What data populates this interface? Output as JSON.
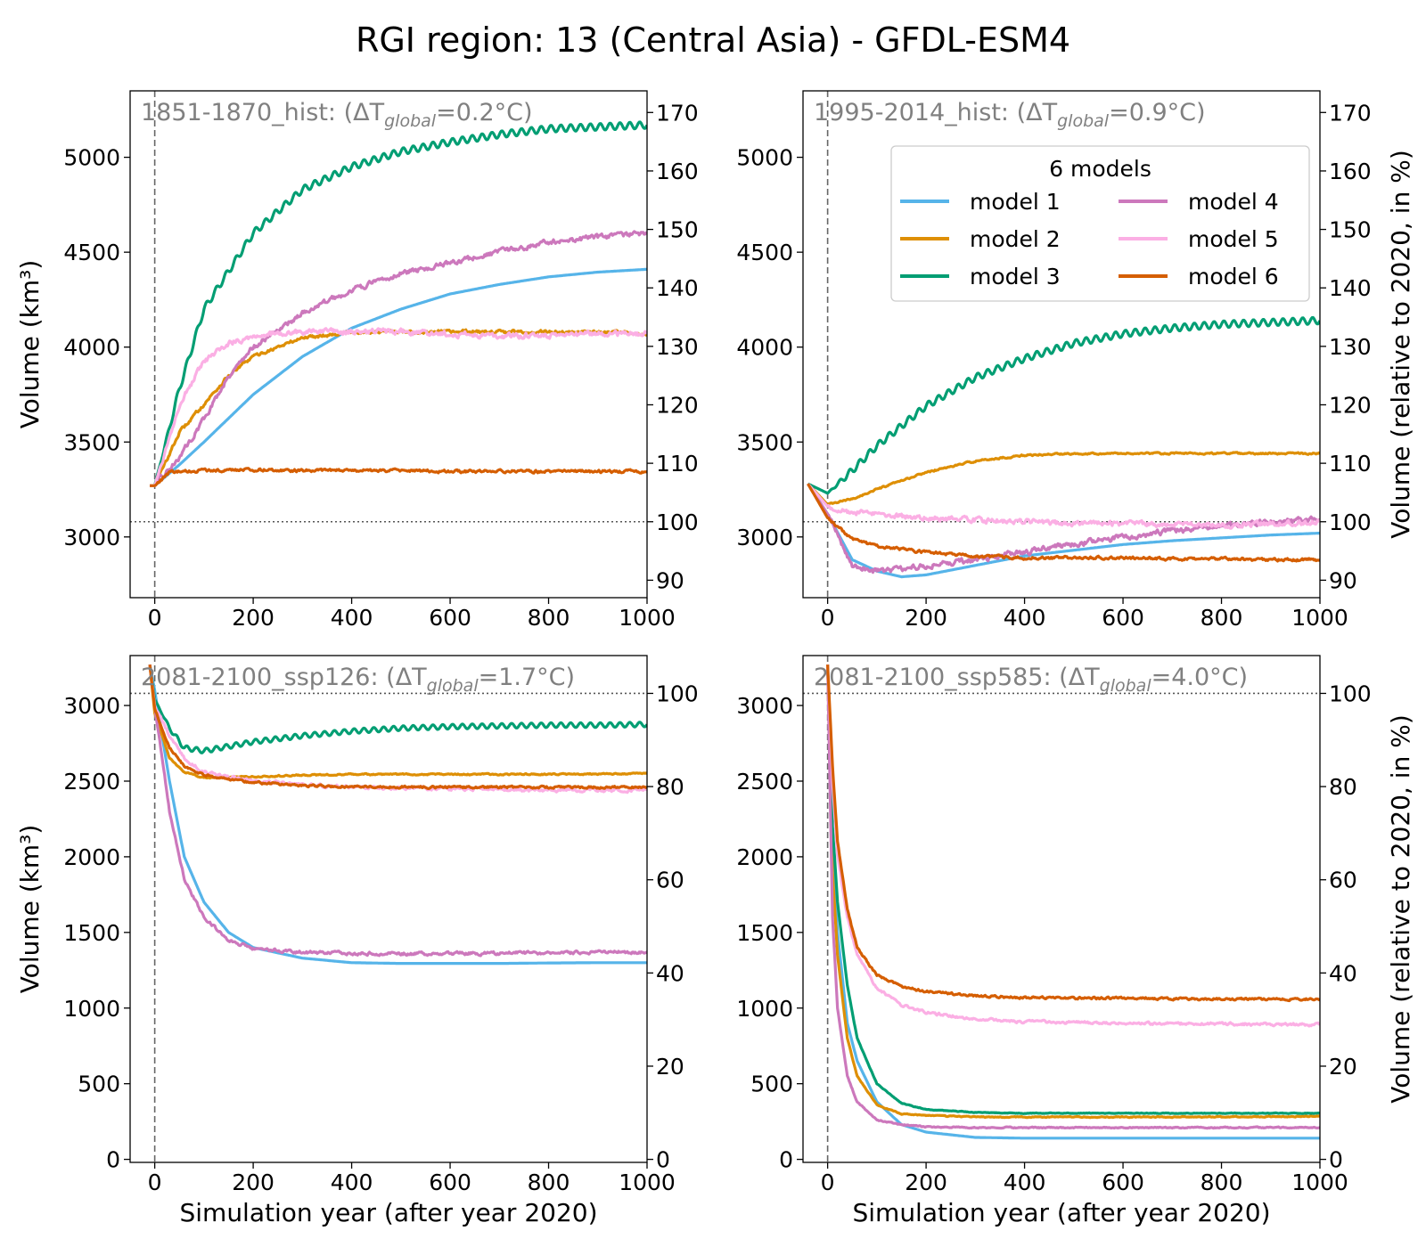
{
  "title": "RGI region: 13 (Central Asia) - GFDL-ESM4",
  "colors": {
    "model 1": "#56b4e9",
    "model 2": "#de8f05",
    "model 3": "#029e73",
    "model 4": "#cc78bc",
    "model 5": "#fbafe4",
    "model 6": "#d55e00",
    "annotation": "#808080",
    "axes": "#000000"
  },
  "chart_data": [
    {
      "type": "line",
      "annotation": "1851-1870_hist: (ΔT<sub>global</sub>=0.2°C)",
      "annotation_parts": {
        "pre": "1851-1870_hist: (ΔT",
        "sub": "global",
        "post": "=0.2°C)"
      },
      "xlabel": "",
      "ylabel": "Volume (km³)",
      "ylabel_right": "",
      "xlim": [
        -50,
        1000
      ],
      "ylim": [
        2680,
        5350
      ],
      "xticks": [
        0,
        200,
        400,
        600,
        800,
        1000
      ],
      "yticks": [
        3000,
        3500,
        4000,
        4500,
        5000
      ],
      "yticks_right": [
        90,
        100,
        110,
        120,
        130,
        140,
        150,
        160,
        170
      ],
      "ref_volume_2020": 3080,
      "vertical_dashed_x": 0,
      "legend": null,
      "series": [
        {
          "name": "model 1",
          "x": [
            -10,
            0,
            50,
            100,
            200,
            300,
            400,
            500,
            600,
            700,
            800,
            900,
            1000
          ],
          "values": [
            3270,
            3270,
            3380,
            3500,
            3750,
            3950,
            4100,
            4200,
            4280,
            4330,
            4370,
            4395,
            4410
          ],
          "noise": 0
        },
        {
          "name": "model 2",
          "x": [
            -10,
            0,
            50,
            100,
            150,
            200,
            300,
            400,
            500,
            600,
            700,
            800,
            900,
            1000
          ],
          "values": [
            3270,
            3270,
            3550,
            3700,
            3850,
            3950,
            4050,
            4080,
            4080,
            4080,
            4080,
            4080,
            4080,
            4070
          ],
          "noise": 12
        },
        {
          "name": "model 3",
          "x": [
            -10,
            0,
            50,
            100,
            200,
            300,
            400,
            500,
            600,
            700,
            800,
            900,
            1000
          ],
          "values": [
            3270,
            3270,
            3780,
            4200,
            4600,
            4830,
            4950,
            5030,
            5080,
            5120,
            5150,
            5160,
            5170
          ],
          "noise": 0,
          "wave": 18
        },
        {
          "name": "model 4",
          "x": [
            -10,
            0,
            50,
            100,
            150,
            200,
            300,
            400,
            500,
            600,
            700,
            800,
            900,
            1000
          ],
          "values": [
            3270,
            3270,
            3420,
            3620,
            3850,
            4000,
            4180,
            4300,
            4390,
            4440,
            4500,
            4550,
            4580,
            4600
          ],
          "noise": 18
        },
        {
          "name": "model 5",
          "x": [
            -10,
            0,
            50,
            100,
            150,
            200,
            300,
            400,
            500,
            600,
            700,
            800,
            900,
            1000
          ],
          "values": [
            3270,
            3270,
            3700,
            3920,
            4020,
            4060,
            4080,
            4080,
            4080,
            4070,
            4060,
            4060,
            4070,
            4070
          ],
          "noise": 20
        },
        {
          "name": "model 6",
          "x": [
            -10,
            0,
            30,
            100,
            200,
            300,
            400,
            500,
            600,
            700,
            800,
            900,
            1000
          ],
          "values": [
            3270,
            3270,
            3340,
            3350,
            3355,
            3350,
            3350,
            3350,
            3345,
            3345,
            3345,
            3345,
            3345
          ],
          "noise": 10
        }
      ]
    },
    {
      "type": "line",
      "annotation": "1995-2014_hist: (ΔT<sub>global</sub>=0.9°C)",
      "annotation_parts": {
        "pre": "1995-2014_hist: (ΔT",
        "sub": "global",
        "post": "=0.9°C)"
      },
      "xlabel": "",
      "ylabel": "",
      "ylabel_right": "Volume (relative to 2020, in %)",
      "xlim": [
        -50,
        1000
      ],
      "ylim": [
        2680,
        5350
      ],
      "xticks": [
        0,
        200,
        400,
        600,
        800,
        1000
      ],
      "yticks": [
        3000,
        3500,
        4000,
        4500,
        5000
      ],
      "yticks_right": [
        90,
        100,
        110,
        120,
        130,
        140,
        150,
        160,
        170
      ],
      "ref_volume_2020": 3080,
      "vertical_dashed_x": 0,
      "legend": {
        "title": "6 models",
        "position": "upper right",
        "columns": 2,
        "entries": [
          "model 1",
          "model 2",
          "model 3",
          "model 4",
          "model 5",
          "model 6"
        ]
      },
      "series": [
        {
          "name": "model 1",
          "x": [
            -40,
            0,
            50,
            100,
            150,
            200,
            300,
            400,
            500,
            600,
            700,
            800,
            900,
            1000
          ],
          "values": [
            3280,
            3120,
            2880,
            2820,
            2790,
            2800,
            2850,
            2900,
            2930,
            2960,
            2980,
            2995,
            3010,
            3020
          ],
          "noise": 0
        },
        {
          "name": "model 2",
          "x": [
            -40,
            0,
            50,
            100,
            200,
            300,
            400,
            500,
            600,
            700,
            800,
            900,
            1000
          ],
          "values": [
            3280,
            3170,
            3200,
            3250,
            3340,
            3400,
            3430,
            3440,
            3440,
            3440,
            3440,
            3440,
            3440
          ],
          "noise": 6
        },
        {
          "name": "model 3",
          "x": [
            -40,
            0,
            50,
            100,
            200,
            300,
            400,
            500,
            600,
            700,
            800,
            900,
            1000
          ],
          "values": [
            3280,
            3230,
            3350,
            3480,
            3690,
            3840,
            3940,
            4020,
            4070,
            4100,
            4120,
            4130,
            4140
          ],
          "noise": 0,
          "wave": 18
        },
        {
          "name": "model 4",
          "x": [
            -40,
            0,
            50,
            100,
            150,
            200,
            300,
            400,
            500,
            600,
            700,
            800,
            900,
            1000
          ],
          "values": [
            3280,
            3120,
            2850,
            2820,
            2830,
            2850,
            2880,
            2920,
            2960,
            3000,
            3030,
            3060,
            3080,
            3090
          ],
          "noise": 20
        },
        {
          "name": "model 5",
          "x": [
            -40,
            0,
            50,
            100,
            200,
            300,
            400,
            500,
            600,
            700,
            800,
            900,
            1000
          ],
          "values": [
            3280,
            3160,
            3130,
            3120,
            3100,
            3090,
            3080,
            3070,
            3070,
            3070,
            3060,
            3070,
            3080
          ],
          "noise": 18
        },
        {
          "name": "model 6",
          "x": [
            -40,
            0,
            50,
            100,
            200,
            300,
            400,
            500,
            600,
            700,
            800,
            900,
            1000
          ],
          "values": [
            3280,
            3100,
            2990,
            2950,
            2920,
            2900,
            2890,
            2890,
            2890,
            2885,
            2885,
            2880,
            2880
          ],
          "noise": 10
        }
      ]
    },
    {
      "type": "line",
      "annotation": "2081-2100_ssp126: (ΔT<sub>global</sub>=1.7°C)",
      "annotation_parts": {
        "pre": "2081-2100_ssp126: (ΔT",
        "sub": "global",
        "post": "=1.7°C)"
      },
      "xlabel": "Simulation year (after year 2020)",
      "ylabel": "Volume (km³)",
      "ylabel_right": "",
      "xlim": [
        -50,
        1000
      ],
      "ylim": [
        -20,
        3330
      ],
      "xticks": [
        0,
        200,
        400,
        600,
        800,
        1000
      ],
      "yticks": [
        0,
        500,
        1000,
        1500,
        2000,
        2500,
        3000
      ],
      "yticks_right": [
        0,
        20,
        40,
        60,
        80,
        100
      ],
      "ref_volume_2020": 3080,
      "vertical_dashed_x": 0,
      "legend": null,
      "series": [
        {
          "name": "model 1",
          "x": [
            -10,
            0,
            30,
            60,
            100,
            150,
            200,
            300,
            400,
            500,
            600,
            700,
            800,
            900,
            1000
          ],
          "values": [
            3270,
            3100,
            2500,
            2000,
            1700,
            1500,
            1400,
            1330,
            1300,
            1295,
            1295,
            1295,
            1298,
            1300,
            1300
          ],
          "noise": 0
        },
        {
          "name": "model 2",
          "x": [
            -10,
            0,
            30,
            60,
            100,
            200,
            300,
            400,
            600,
            800,
            1000
          ],
          "values": [
            3270,
            2950,
            2650,
            2560,
            2520,
            2530,
            2540,
            2545,
            2545,
            2545,
            2550
          ],
          "noise": 6
        },
        {
          "name": "model 3",
          "x": [
            -10,
            0,
            30,
            60,
            100,
            200,
            300,
            400,
            500,
            600,
            700,
            800,
            900,
            1000
          ],
          "values": [
            3270,
            3040,
            2850,
            2720,
            2700,
            2760,
            2800,
            2830,
            2850,
            2860,
            2865,
            2870,
            2870,
            2875
          ],
          "noise": 0,
          "wave": 16
        },
        {
          "name": "model 4",
          "x": [
            -10,
            0,
            30,
            60,
            100,
            150,
            200,
            300,
            400,
            600,
            800,
            1000
          ],
          "values": [
            3270,
            3000,
            2300,
            1850,
            1600,
            1450,
            1390,
            1370,
            1360,
            1360,
            1365,
            1370
          ],
          "noise": 14
        },
        {
          "name": "model 5",
          "x": [
            -10,
            0,
            30,
            60,
            100,
            200,
            300,
            400,
            600,
            800,
            1000
          ],
          "values": [
            3270,
            3000,
            2800,
            2650,
            2560,
            2500,
            2480,
            2460,
            2450,
            2440,
            2440
          ],
          "noise": 14
        },
        {
          "name": "model 6",
          "x": [
            -10,
            0,
            30,
            60,
            100,
            200,
            300,
            400,
            600,
            800,
            1000
          ],
          "values": [
            3270,
            2980,
            2720,
            2600,
            2540,
            2490,
            2470,
            2465,
            2460,
            2460,
            2460
          ],
          "noise": 10
        }
      ]
    },
    {
      "type": "line",
      "annotation": "2081-2100_ssp585: (ΔT<sub>global</sub>=4.0°C)",
      "annotation_parts": {
        "pre": "2081-2100_ssp585: (ΔT",
        "sub": "global",
        "post": "=4.0°C)"
      },
      "xlabel": "Simulation year (after year 2020)",
      "ylabel": "",
      "ylabel_right": "Volume (relative to 2020, in %)",
      "xlim": [
        -50,
        1000
      ],
      "ylim": [
        -20,
        3330
      ],
      "xticks": [
        0,
        200,
        400,
        600,
        800,
        1000
      ],
      "yticks": [
        0,
        500,
        1000,
        1500,
        2000,
        2500,
        3000
      ],
      "yticks_right": [
        0,
        20,
        40,
        60,
        80,
        100
      ],
      "ref_volume_2020": 3080,
      "vertical_dashed_x": 0,
      "legend": null,
      "series": [
        {
          "name": "model 1",
          "x": [
            0,
            10,
            20,
            40,
            60,
            100,
            150,
            200,
            300,
            400,
            600,
            800,
            1000
          ],
          "values": [
            3270,
            2000,
            1500,
            900,
            650,
            380,
            230,
            180,
            145,
            140,
            140,
            140,
            140
          ],
          "noise": 0
        },
        {
          "name": "model 2",
          "x": [
            0,
            10,
            20,
            40,
            60,
            100,
            150,
            200,
            300,
            400,
            600,
            800,
            1000
          ],
          "values": [
            3270,
            1900,
            1350,
            800,
            550,
            360,
            300,
            290,
            280,
            280,
            280,
            280,
            285
          ],
          "noise": 4
        },
        {
          "name": "model 3",
          "x": [
            0,
            10,
            20,
            40,
            60,
            100,
            150,
            200,
            300,
            400,
            600,
            800,
            1000
          ],
          "values": [
            3270,
            2200,
            1700,
            1150,
            800,
            500,
            370,
            330,
            310,
            305,
            305,
            305,
            305
          ],
          "noise": 3
        },
        {
          "name": "model 4",
          "x": [
            0,
            10,
            20,
            40,
            60,
            100,
            150,
            200,
            300,
            400,
            600,
            800,
            1000
          ],
          "values": [
            3270,
            1600,
            1000,
            550,
            380,
            260,
            230,
            215,
            210,
            210,
            210,
            210,
            210
          ],
          "noise": 5
        },
        {
          "name": "model 5",
          "x": [
            0,
            10,
            20,
            40,
            60,
            100,
            150,
            200,
            300,
            400,
            600,
            800,
            1000
          ],
          "values": [
            3270,
            2500,
            2000,
            1600,
            1350,
            1130,
            1020,
            970,
            930,
            910,
            900,
            895,
            890
          ],
          "noise": 12
        },
        {
          "name": "model 6",
          "x": [
            0,
            10,
            20,
            40,
            60,
            100,
            150,
            200,
            300,
            400,
            600,
            800,
            1000
          ],
          "values": [
            3270,
            2600,
            2100,
            1650,
            1400,
            1220,
            1140,
            1110,
            1080,
            1070,
            1065,
            1060,
            1060
          ],
          "noise": 10
        }
      ]
    }
  ]
}
